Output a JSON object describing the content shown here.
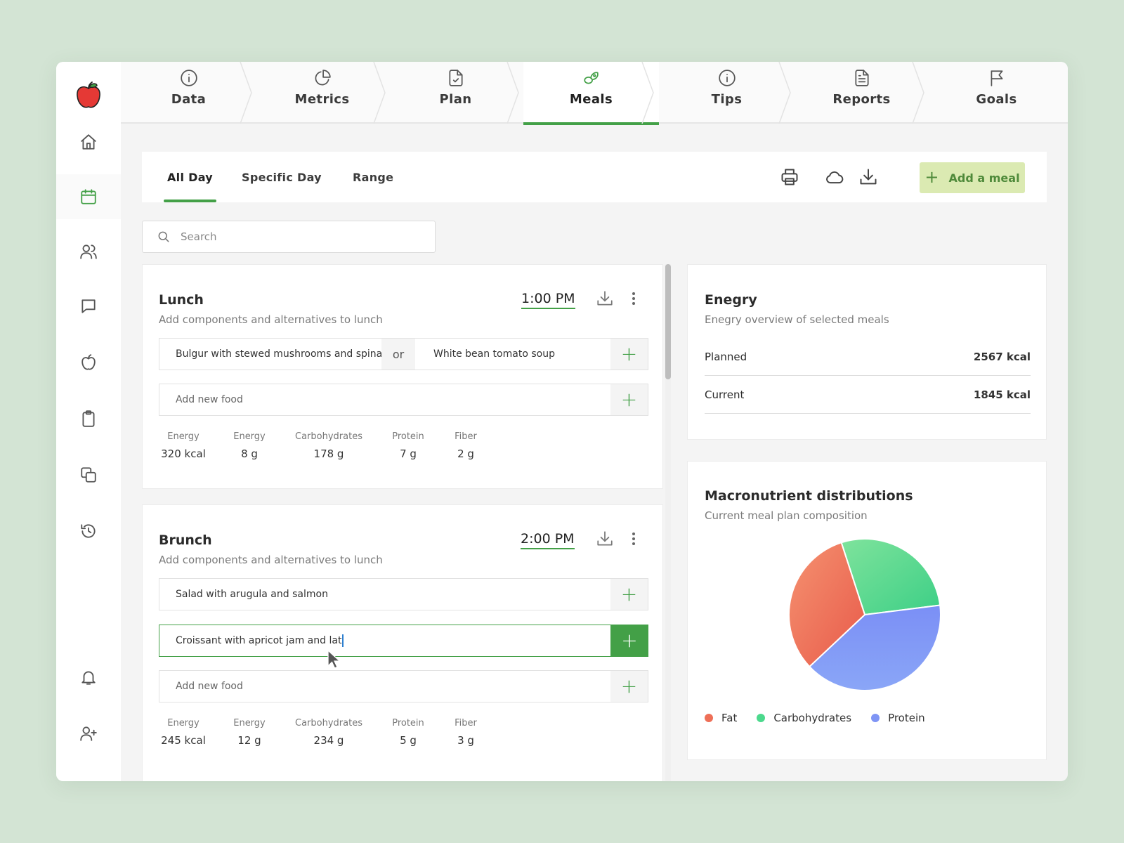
{
  "top_tabs": [
    {
      "label": "Data",
      "icon": "info-icon"
    },
    {
      "label": "Metrics",
      "icon": "pie-chart-icon"
    },
    {
      "label": "Plan",
      "icon": "file-check-icon"
    },
    {
      "label": "Meals",
      "icon": "meals-icon",
      "active": true
    },
    {
      "label": "Tips",
      "icon": "info-icon"
    },
    {
      "label": "Reports",
      "icon": "document-icon"
    },
    {
      "label": "Goals",
      "icon": "flag-icon"
    }
  ],
  "sidebar": {
    "items": [
      "home-icon",
      "calendar-icon",
      "users-icon",
      "chat-icon",
      "apple-icon",
      "clipboard-icon",
      "copy-icon",
      "history-icon",
      "bell-icon",
      "user-plus-icon"
    ],
    "active": "calendar-icon"
  },
  "sub_tabs": [
    {
      "label": "All Day",
      "active": true
    },
    {
      "label": "Specific Day"
    },
    {
      "label": "Range"
    }
  ],
  "toolbar": {
    "icons": [
      "print-icon",
      "cloud-icon",
      "download-icon"
    ],
    "add_meal_label": "Add a meal"
  },
  "search": {
    "placeholder": "Search",
    "value": ""
  },
  "meals": [
    {
      "title": "Lunch",
      "subtitle": "Add components and alternatives to lunch",
      "time": "1:00 PM",
      "rows": [
        {
          "primary": "Bulgur with stewed mushrooms and spinach",
          "or": "or",
          "alternative": "White bean tomato soup"
        },
        {
          "placeholder": "Add new food"
        }
      ],
      "nutrients": [
        {
          "label": "Energy",
          "value": "320 kcal"
        },
        {
          "label": "Energy",
          "value": "8 g"
        },
        {
          "label": "Carbohydrates",
          "value": "178 g"
        },
        {
          "label": "Protein",
          "value": "7 g"
        },
        {
          "label": "Fiber",
          "value": "2 g"
        }
      ]
    },
    {
      "title": "Brunch",
      "subtitle": "Add components and alternatives to lunch",
      "time": "2:00 PM",
      "rows": [
        {
          "primary": "Salad with arugula and salmon"
        },
        {
          "input_value": "Croissant with apricot jam and lat"
        },
        {
          "placeholder": "Add new food"
        }
      ],
      "nutrients": [
        {
          "label": "Energy",
          "value": "245 kcal"
        },
        {
          "label": "Energy",
          "value": "12 g"
        },
        {
          "label": "Carbohydrates",
          "value": "234 g"
        },
        {
          "label": "Protein",
          "value": "5 g"
        },
        {
          "label": "Fiber",
          "value": "3 g"
        }
      ]
    }
  ],
  "energy_panel": {
    "title": "Enegry",
    "subtitle": "Enegry overview of selected meals",
    "rows": [
      {
        "label": "Planned",
        "value": "2567 kcal"
      },
      {
        "label": "Current",
        "value": "1845 kcal"
      }
    ]
  },
  "macro_panel": {
    "title": "Macronutrient distributions",
    "subtitle": "Current meal plan composition"
  },
  "chart_data": {
    "type": "pie",
    "title": "Macronutrient distributions",
    "subtitle": "Current meal plan composition",
    "legend_position": "bottom-left",
    "slices": [
      {
        "name": "Carbohydrates",
        "value": 28,
        "color": "#4cd98d"
      },
      {
        "name": "Protein",
        "value": 40,
        "color": "#7f95f5"
      },
      {
        "name": "Fat",
        "value": 32,
        "color": "#ee6f57"
      }
    ]
  },
  "colors": {
    "accent": "#43a047",
    "add_meal_bg": "#dbeab2",
    "background": "#d3e4d4"
  }
}
